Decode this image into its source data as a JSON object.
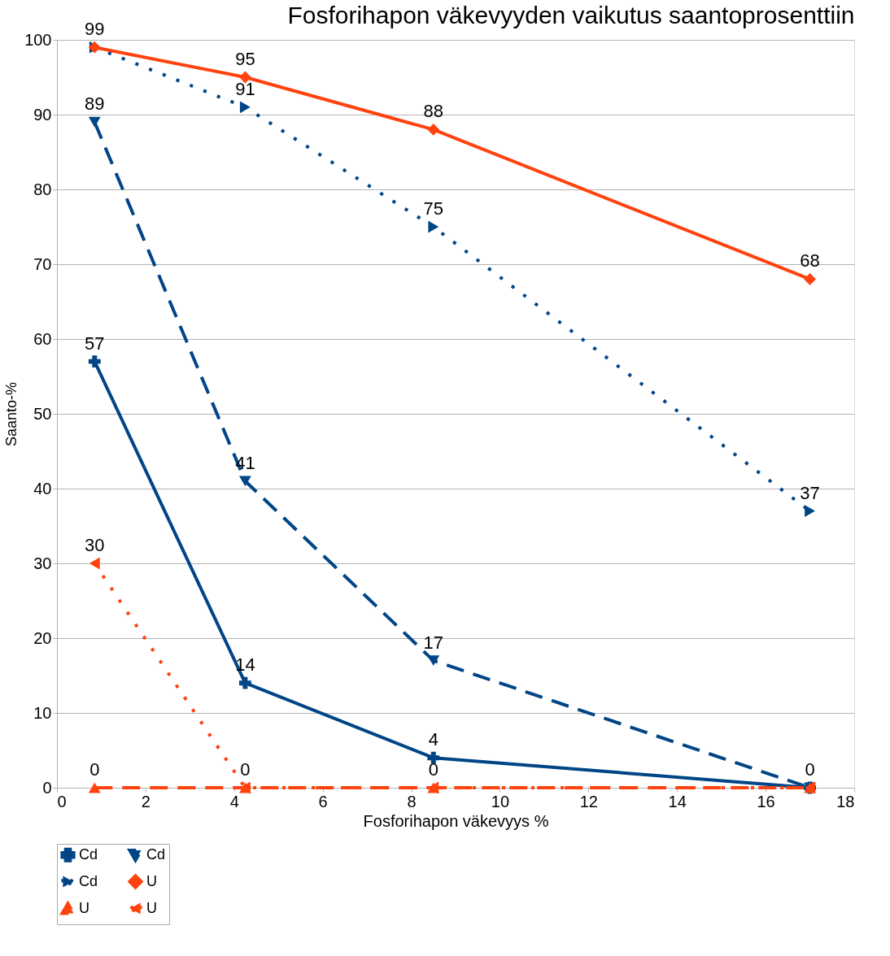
{
  "chart_data": {
    "type": "line",
    "title": "Fosforihapon väkevyyden vaikutus saantoprosenttiin",
    "xlabel": "Fosforihapon väkevyys %",
    "ylabel": "Saanto-%",
    "x": [
      0.85,
      4.25,
      8.5,
      17
    ],
    "series": [
      {
        "name": "Cd",
        "color": "#004586",
        "values": [
          57,
          14,
          4,
          0
        ],
        "value_labels": [
          "57",
          "14",
          "4",
          "0"
        ],
        "marker": "cross",
        "line_style": "solid"
      },
      {
        "name": "Cd",
        "color": "#004586",
        "values": [
          89,
          41,
          17,
          0
        ],
        "value_labels": [
          "89",
          "41",
          "17",
          null
        ],
        "marker": "triangle-down",
        "line_style": "dashed"
      },
      {
        "name": "Cd",
        "color": "#004586",
        "values": [
          99,
          91,
          75,
          37
        ],
        "value_labels": [
          "99",
          "91",
          "75",
          "37"
        ],
        "marker": "triangle-right",
        "line_style": "dotted"
      },
      {
        "name": "U",
        "color": "#ff420e",
        "values": [
          99,
          95,
          88,
          68
        ],
        "value_labels": [
          null,
          "95",
          "88",
          "68"
        ],
        "marker": "diamond",
        "line_style": "solid"
      },
      {
        "name": "U",
        "color": "#ff420e",
        "values": [
          0,
          0,
          0,
          0
        ],
        "value_labels": [
          "0",
          null,
          null,
          null
        ],
        "marker": "triangle-up",
        "line_style": "dashed"
      },
      {
        "name": "U",
        "color": "#ff420e",
        "values": [
          30,
          0,
          0,
          0
        ],
        "value_labels": [
          "30",
          "0",
          "0",
          null
        ],
        "marker": "triangle-left",
        "line_style": "dotted"
      }
    ],
    "xlim": [
      0,
      18
    ],
    "xticks": [
      0,
      2,
      4,
      6,
      8,
      10,
      12,
      14,
      16,
      18
    ],
    "ylim": [
      0,
      100
    ],
    "yticks": [
      0,
      10,
      20,
      30,
      40,
      50,
      60,
      70,
      80,
      90,
      100
    ],
    "grid": "y",
    "legend": "bottom"
  }
}
